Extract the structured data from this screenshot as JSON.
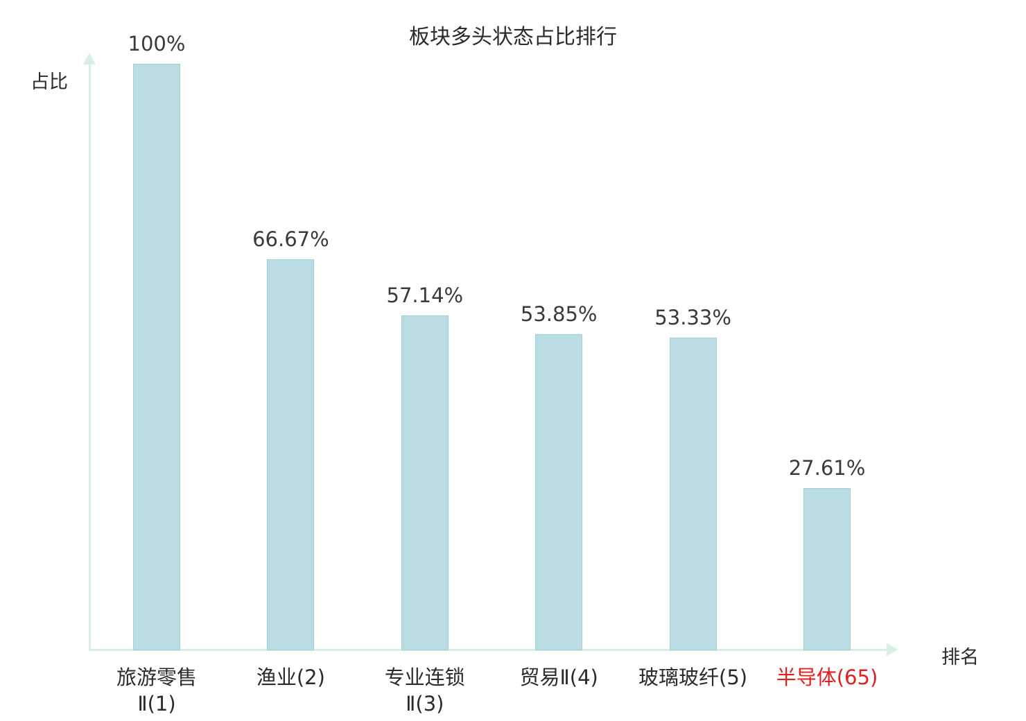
{
  "chart_data": {
    "type": "bar",
    "title": "板块多头状态占比排行",
    "xlabel": "排名",
    "ylabel": "占比",
    "ylim": [
      0,
      100
    ],
    "grid": false,
    "legend": "none",
    "categories": [
      "旅游零售Ⅱ(1)",
      "渔业(2)",
      "专业连锁Ⅱ(3)",
      "贸易Ⅱ(4)",
      "玻璃玻纤(5)",
      "半导体(65)"
    ],
    "category_lines": [
      [
        "旅游零售",
        "Ⅱ(1)"
      ],
      [
        "渔业(2)"
      ],
      [
        "专业连锁",
        "Ⅱ(3)"
      ],
      [
        "贸易Ⅱ(4)"
      ],
      [
        "玻璃玻纤(5)"
      ],
      [
        "半导体(65)"
      ]
    ],
    "values": [
      100,
      66.67,
      57.14,
      53.85,
      53.33,
      27.61
    ],
    "value_labels": [
      "100%",
      "66.67%",
      "57.14%",
      "53.85%",
      "53.33%",
      "27.61%"
    ],
    "category_colors": [
      "#2b2b2b",
      "#2b2b2b",
      "#2b2b2b",
      "#2b2b2b",
      "#2b2b2b",
      "#e01f1f"
    ],
    "bar_color": "#b9dde2",
    "bar_border_color": "#a3ced5",
    "axis_color": "#d8efe4"
  }
}
